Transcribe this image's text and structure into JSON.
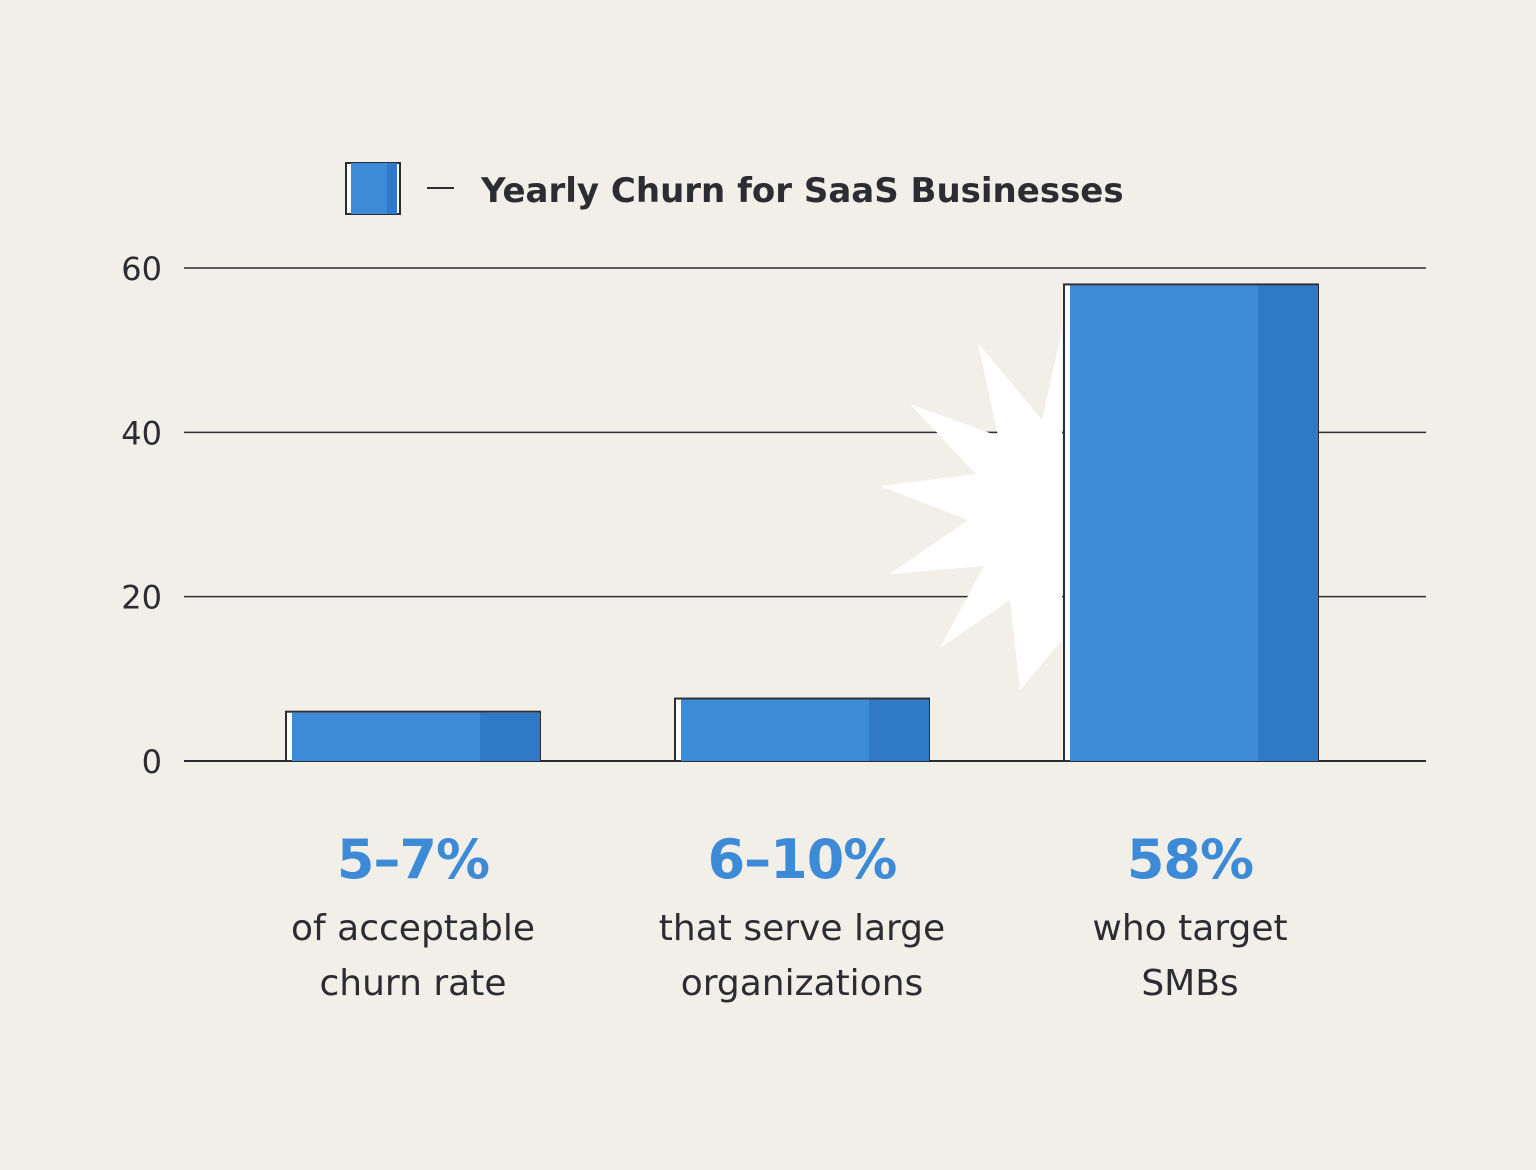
{
  "chart_data": {
    "type": "bar",
    "categories": [
      "of acceptable churn rate",
      "that serve large organizations",
      "who target SMBs"
    ],
    "series": [
      {
        "name": "Yearly Churn for SaaS Businesses",
        "values": [
          6,
          7.6,
          58
        ]
      }
    ],
    "ylim": [
      0,
      60
    ],
    "yticks": [
      0,
      20,
      40,
      60
    ],
    "grid": true,
    "legend_position": "top-center",
    "bar_labels": [
      {
        "value_text": "5–7%",
        "lines": [
          "of acceptable",
          "churn rate"
        ]
      },
      {
        "value_text": "6–10%",
        "lines": [
          "that serve large",
          "organizations"
        ]
      },
      {
        "value_text": "58%",
        "lines": [
          "who target",
          "SMBs"
        ]
      }
    ],
    "colors": {
      "bar": "#3d8bd6",
      "bar_shade": "#3079c7",
      "value_text": "#3d8bd6",
      "text": "#2b2d33",
      "grid": "#2b2d33",
      "background": "#f1efe8",
      "burst": "#ffffff"
    }
  }
}
